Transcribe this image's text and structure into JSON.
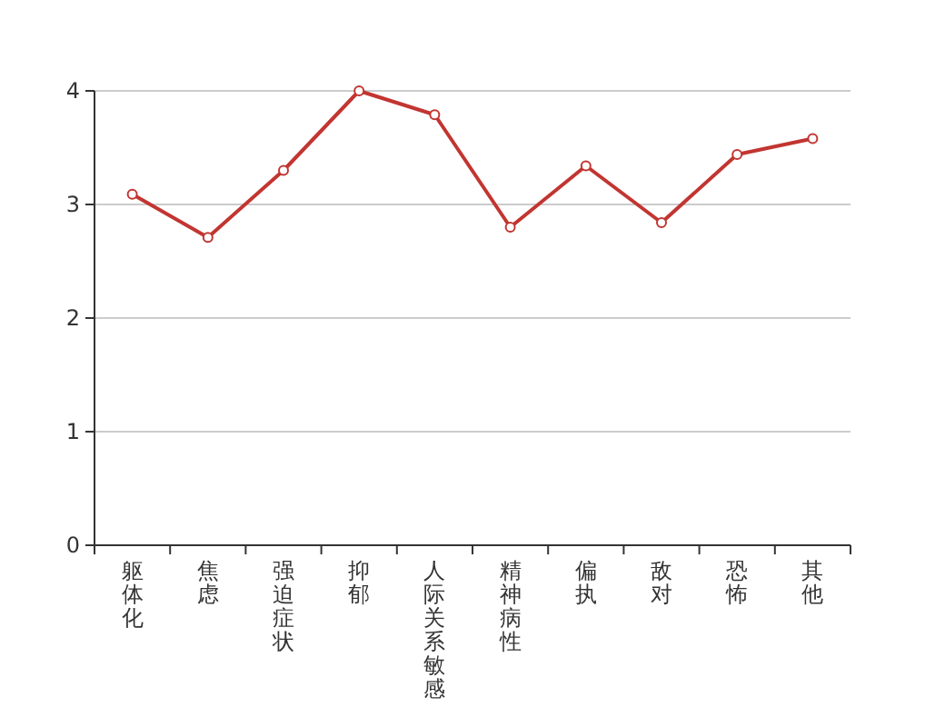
{
  "chart_data": {
    "type": "line",
    "categories": [
      "躯体化",
      "焦虑",
      "强迫症状",
      "抑郁",
      "人际关系敏感",
      "精神病性",
      "偏执",
      "敌对",
      "恐怖",
      "其他"
    ],
    "series": [
      {
        "color": "#c23531",
        "values": [
          3.09,
          2.71,
          3.3,
          4.0,
          3.79,
          2.8,
          3.34,
          2.84,
          3.44,
          3.58
        ]
      }
    ],
    "ylim": [
      0,
      4
    ],
    "yticks": [
      0,
      1,
      2,
      3,
      4
    ],
    "grid": "y",
    "marker": "circle",
    "line_style": "solid"
  }
}
